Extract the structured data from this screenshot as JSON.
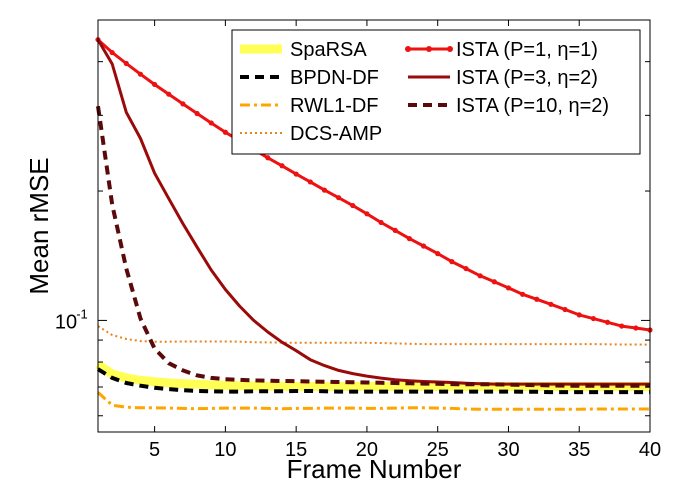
{
  "chart_data": {
    "type": "line",
    "title": "",
    "xlabel": "Frame Number",
    "ylabel": "Mean rMSE",
    "xlim": [
      1,
      40
    ],
    "ylim": [
      0.055,
      0.5
    ],
    "yscale": "log",
    "grid": false,
    "legend_position": "top-right",
    "xticks": [
      5,
      10,
      15,
      20,
      25,
      30,
      35,
      40
    ],
    "yticks": [
      {
        "value": 0.1,
        "label": "10",
        "exponent": "-1"
      }
    ],
    "x": [
      1,
      2,
      3,
      4,
      5,
      6,
      7,
      8,
      9,
      10,
      11,
      12,
      13,
      14,
      15,
      16,
      17,
      18,
      19,
      20,
      21,
      22,
      23,
      24,
      25,
      26,
      27,
      28,
      29,
      30,
      31,
      32,
      33,
      34,
      35,
      36,
      37,
      38,
      39,
      40
    ],
    "series": [
      {
        "name": "SpaRSA",
        "color": "#ffff55",
        "style": "thick",
        "values": [
          0.079,
          0.075,
          0.0735,
          0.0725,
          0.072,
          0.0715,
          0.0712,
          0.071,
          0.0708,
          0.0706,
          0.0705,
          0.0704,
          0.0703,
          0.0703,
          0.0702,
          0.0702,
          0.0702,
          0.0702,
          0.0702,
          0.0702,
          0.0702,
          0.0702,
          0.0702,
          0.0702,
          0.0702,
          0.0702,
          0.0702,
          0.0702,
          0.0702,
          0.0702,
          0.0702,
          0.0702,
          0.0702,
          0.0702,
          0.0702,
          0.0702,
          0.0702,
          0.0702,
          0.0702,
          0.0702
        ]
      },
      {
        "name": "BPDN-DF",
        "color": "#000000",
        "style": "dash",
        "values": [
          0.077,
          0.0735,
          0.0715,
          0.0705,
          0.0697,
          0.0692,
          0.0688,
          0.0685,
          0.0684,
          0.0683,
          0.0683,
          0.0684,
          0.0684,
          0.0684,
          0.0685,
          0.0685,
          0.0684,
          0.0683,
          0.0683,
          0.0683,
          0.0683,
          0.0683,
          0.0683,
          0.0683,
          0.0683,
          0.0683,
          0.0683,
          0.0683,
          0.0683,
          0.0683,
          0.0682,
          0.0682,
          0.0681,
          0.0681,
          0.0681,
          0.0681,
          0.0681,
          0.0681,
          0.0681,
          0.0681
        ]
      },
      {
        "name": "RWL1-DF",
        "color": "#ffa500",
        "style": "dashdot",
        "values": [
          0.068,
          0.0635,
          0.0628,
          0.0626,
          0.0626,
          0.0625,
          0.0624,
          0.0623,
          0.0624,
          0.0625,
          0.0625,
          0.0625,
          0.0624,
          0.0623,
          0.0624,
          0.0624,
          0.0625,
          0.0625,
          0.0625,
          0.0624,
          0.0624,
          0.0625,
          0.0626,
          0.0626,
          0.0625,
          0.0624,
          0.0622,
          0.0621,
          0.0621,
          0.0621,
          0.0621,
          0.0621,
          0.0621,
          0.0621,
          0.0621,
          0.0622,
          0.0622,
          0.0622,
          0.0622,
          0.0622
        ]
      },
      {
        "name": "DCS-AMP",
        "color": "#e8841a",
        "style": "dot",
        "values": [
          0.097,
          0.0925,
          0.0905,
          0.0895,
          0.0892,
          0.0892,
          0.0893,
          0.0893,
          0.0893,
          0.0893,
          0.0892,
          0.089,
          0.0889,
          0.0888,
          0.0887,
          0.0887,
          0.0887,
          0.0887,
          0.0887,
          0.0887,
          0.0886,
          0.0884,
          0.0882,
          0.0881,
          0.0881,
          0.0881,
          0.0881,
          0.0881,
          0.0881,
          0.0881,
          0.0881,
          0.0881,
          0.0881,
          0.0881,
          0.0881,
          0.0881,
          0.088,
          0.0879,
          0.0879,
          0.0878
        ]
      },
      {
        "name": "ISTA (P=1, η=1)",
        "color": "#ee1111",
        "style": "solid-markers",
        "values": [
          0.45,
          0.42,
          0.396,
          0.374,
          0.354,
          0.336,
          0.319,
          0.303,
          0.288,
          0.274,
          0.262,
          0.25,
          0.239,
          0.229,
          0.219,
          0.21,
          0.201,
          0.193,
          0.185,
          0.177,
          0.169,
          0.162,
          0.155,
          0.149,
          0.143,
          0.137,
          0.132,
          0.127,
          0.123,
          0.119,
          0.115,
          0.112,
          0.109,
          0.106,
          0.103,
          0.101,
          0.099,
          0.097,
          0.096,
          0.095
        ]
      },
      {
        "name": "ISTA (P=3, η=2)",
        "color": "#9b0a0a",
        "style": "solid",
        "values": [
          0.45,
          0.395,
          0.305,
          0.265,
          0.22,
          0.192,
          0.168,
          0.148,
          0.131,
          0.118,
          0.108,
          0.1,
          0.094,
          0.089,
          0.085,
          0.081,
          0.0785,
          0.0765,
          0.0752,
          0.0742,
          0.0734,
          0.0728,
          0.0724,
          0.0721,
          0.0719,
          0.0717,
          0.0714,
          0.0712,
          0.0711,
          0.0711,
          0.0711,
          0.0711,
          0.0711,
          0.0711,
          0.0711,
          0.0711,
          0.0711,
          0.0711,
          0.0711,
          0.0711
        ]
      },
      {
        "name": "ISTA (P=10, η=2)",
        "color": "#5a0a0a",
        "style": "dash",
        "values": [
          0.315,
          0.186,
          0.132,
          0.101,
          0.086,
          0.0795,
          0.0765,
          0.0745,
          0.0735,
          0.073,
          0.0727,
          0.0725,
          0.0724,
          0.0723,
          0.0722,
          0.0721,
          0.072,
          0.0719,
          0.0718,
          0.0717,
          0.0716,
          0.0715,
          0.0714,
          0.0713,
          0.0712,
          0.0711,
          0.071,
          0.071,
          0.071,
          0.0709,
          0.0708,
          0.0707,
          0.0706,
          0.0705,
          0.0705,
          0.0705,
          0.0705,
          0.0705,
          0.0705,
          0.0705
        ]
      }
    ]
  },
  "colors": {
    "background": "#ffffff",
    "axis": "#000000",
    "legend_border": "#000000"
  }
}
